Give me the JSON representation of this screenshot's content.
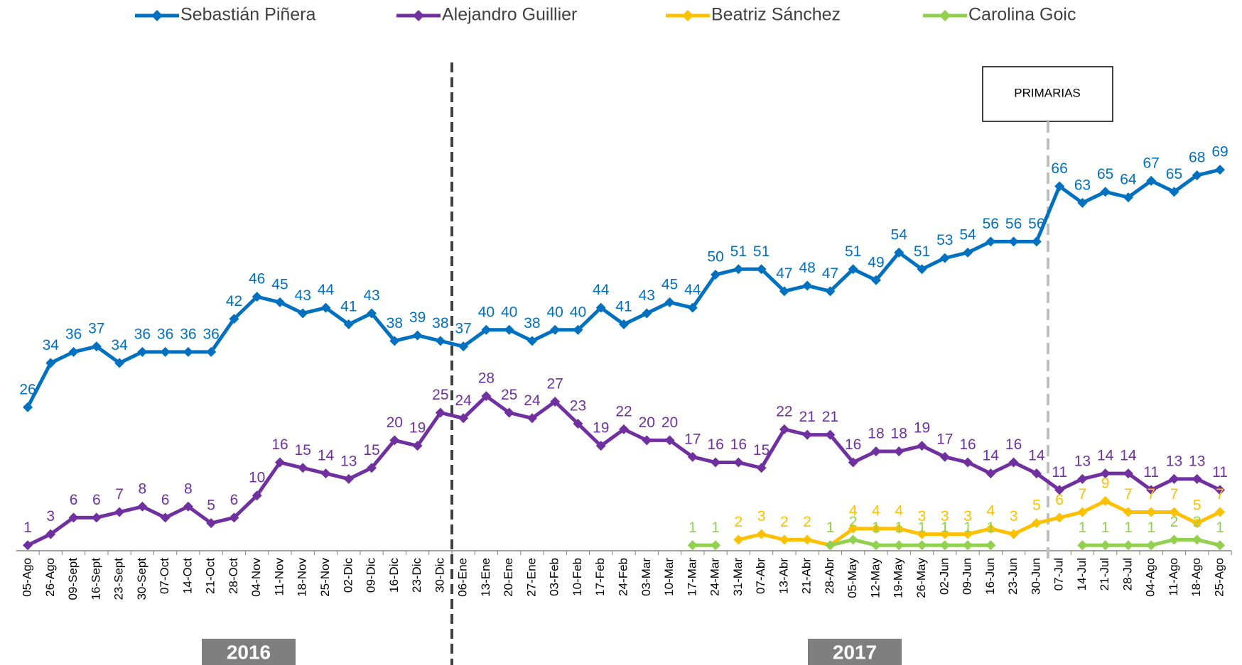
{
  "chart_data": {
    "type": "line",
    "categories": [
      "05-Ago",
      "26-Ago",
      "09-Sept",
      "16-Sept",
      "23-Sept",
      "30-Sept",
      "07-Oct",
      "14-Oct",
      "21-Oct",
      "28-Oct",
      "04-Nov",
      "11-Nov",
      "18-Nov",
      "25-Nov",
      "02-Dic",
      "09-Dic",
      "16-Dic",
      "23-Dic",
      "30-Dic",
      "06-Ene",
      "13-Ene",
      "20-Ene",
      "27-Ene",
      "03-Feb",
      "10-Feb",
      "17-Feb",
      "24-Feb",
      "03-Mar",
      "10-Mar",
      "17-Mar",
      "24-Mar",
      "31-Mar",
      "07-Abr",
      "13-Abr",
      "21-Abr",
      "28-Abr",
      "05-May",
      "12-May",
      "19-May",
      "26-May",
      "02-Jun",
      "09-Jun",
      "16-Jun",
      "23-Jun",
      "30-Jun",
      "07-Jul",
      "14-Jul",
      "21-Jul",
      "28-Jul",
      "04-Ago",
      "11-Ago",
      "18-Ago",
      "25-Ago"
    ],
    "series": [
      {
        "name": "Sebastián Piñera",
        "color": "#0070c0",
        "values": [
          26,
          34,
          36,
          37,
          34,
          36,
          36,
          36,
          36,
          42,
          46,
          45,
          43,
          44,
          41,
          43,
          38,
          39,
          38,
          37,
          40,
          40,
          38,
          40,
          40,
          44,
          41,
          43,
          45,
          44,
          50,
          51,
          51,
          47,
          48,
          47,
          51,
          49,
          54,
          51,
          53,
          54,
          56,
          56,
          56,
          66,
          63,
          65,
          64,
          67,
          65,
          68,
          69
        ]
      },
      {
        "name": "Alejandro Guillier",
        "color": "#7030a0",
        "values": [
          1,
          3,
          6,
          6,
          7,
          8,
          6,
          8,
          5,
          6,
          10,
          16,
          15,
          14,
          13,
          15,
          20,
          19,
          25,
          24,
          28,
          25,
          24,
          27,
          23,
          19,
          22,
          20,
          20,
          17,
          16,
          16,
          15,
          22,
          21,
          21,
          16,
          18,
          18,
          19,
          17,
          16,
          14,
          16,
          14,
          11,
          13,
          14,
          14,
          11,
          13,
          13,
          11
        ]
      },
      {
        "name": "Beatriz Sánchez",
        "color": "#ffc000",
        "values": [
          null,
          null,
          null,
          null,
          null,
          null,
          null,
          null,
          null,
          null,
          null,
          null,
          null,
          null,
          null,
          null,
          null,
          null,
          null,
          null,
          null,
          null,
          null,
          null,
          null,
          null,
          null,
          null,
          null,
          null,
          null,
          2,
          3,
          2,
          2,
          1,
          4,
          4,
          4,
          3,
          3,
          3,
          4,
          3,
          5,
          6,
          7,
          9,
          7,
          7,
          7,
          5,
          7
        ]
      },
      {
        "name": "Carolina Goic",
        "color": "#92d050",
        "values": [
          null,
          null,
          null,
          null,
          null,
          null,
          null,
          null,
          null,
          null,
          null,
          null,
          null,
          null,
          null,
          null,
          null,
          null,
          null,
          null,
          null,
          null,
          null,
          null,
          null,
          null,
          null,
          null,
          null,
          1,
          1,
          null,
          null,
          null,
          null,
          1,
          2,
          1,
          1,
          1,
          1,
          1,
          1,
          null,
          null,
          null,
          1,
          1,
          1,
          1,
          2,
          2,
          1
        ]
      }
    ],
    "ylim": [
      0,
      100
    ],
    "annotations": [
      "PRIMARIAS"
    ],
    "year_labels": [
      "2016",
      "2017"
    ]
  }
}
